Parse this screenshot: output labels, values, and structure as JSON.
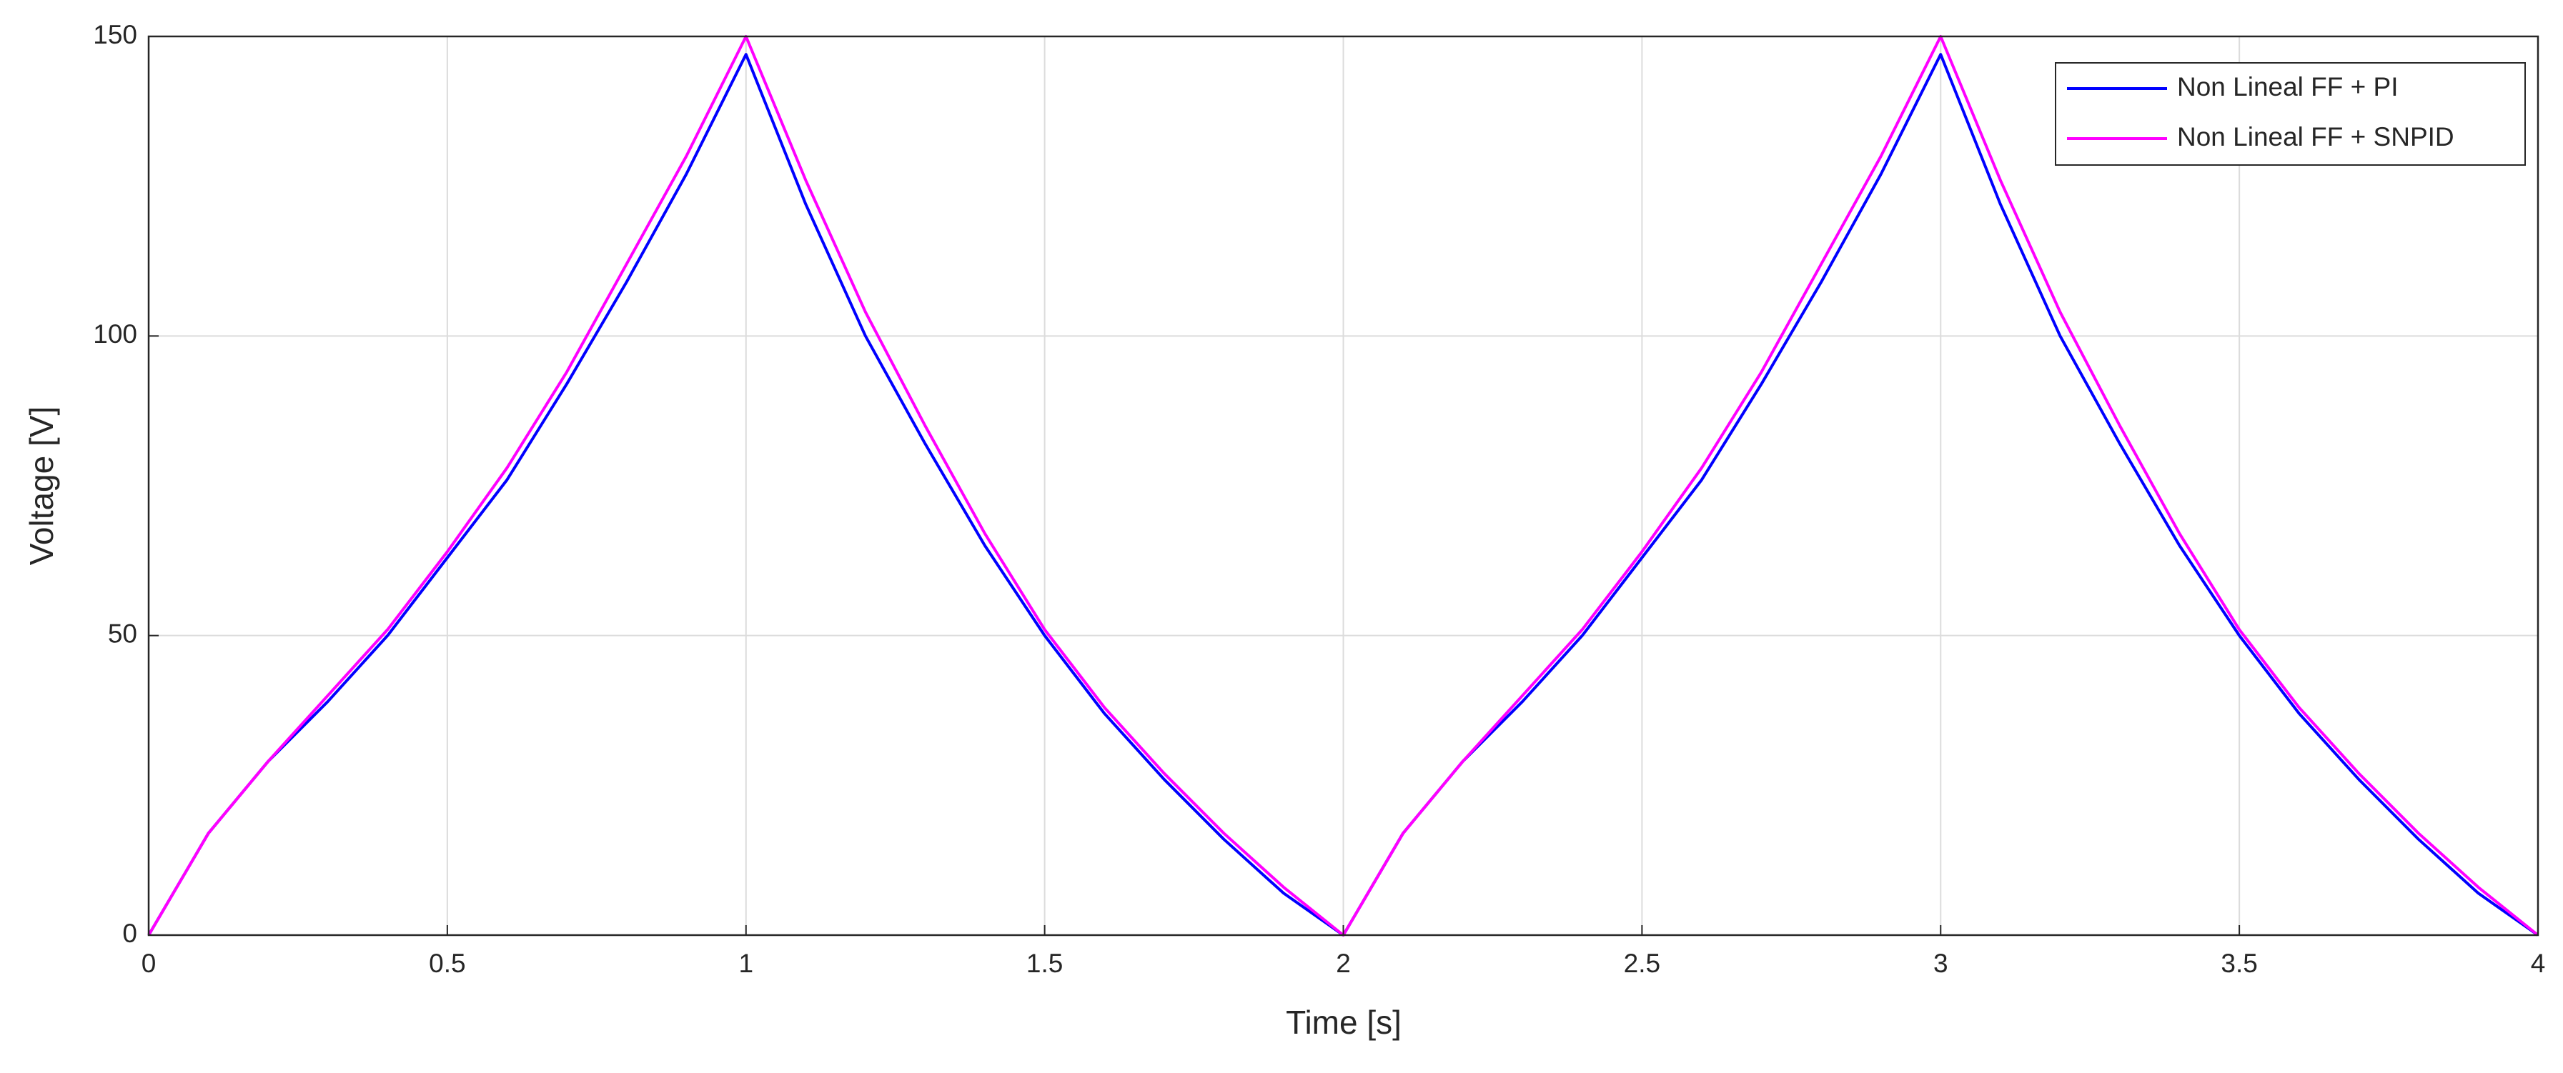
{
  "chart_data": {
    "type": "line",
    "xlabel": "Time [s]",
    "ylabel": "Voltage [V]",
    "x": [
      0,
      0.1,
      0.2,
      0.3,
      0.4,
      0.5,
      0.6,
      0.7,
      0.8,
      0.9,
      1.0,
      1.1,
      1.2,
      1.3,
      1.4,
      1.5,
      1.6,
      1.7,
      1.8,
      1.9,
      2.0,
      2.1,
      2.2,
      2.3,
      2.4,
      2.5,
      2.6,
      2.7,
      2.8,
      2.9,
      3.0,
      3.1,
      3.2,
      3.3,
      3.4,
      3.5,
      3.6,
      3.7,
      3.8,
      3.9,
      4.0
    ],
    "series": [
      {
        "name": "Non Lineal FF + PI",
        "color": "#0000ff",
        "values": [
          0,
          17,
          29,
          39,
          50,
          63,
          76,
          92,
          109,
          127,
          147,
          122,
          100,
          82,
          65,
          50,
          37,
          26,
          16,
          7,
          0,
          17,
          29,
          39,
          50,
          63,
          76,
          92,
          109,
          127,
          147,
          122,
          100,
          82,
          65,
          50,
          37,
          26,
          16,
          7,
          0
        ]
      },
      {
        "name": "Non Lineal FF + SNPID",
        "color": "#ff00ff",
        "values": [
          0,
          17,
          29,
          40,
          51,
          64,
          78,
          94,
          112,
          130,
          150,
          126,
          104,
          85,
          67,
          51,
          38,
          27,
          17,
          8,
          0,
          17,
          29,
          40,
          51,
          64,
          78,
          94,
          112,
          130,
          150,
          126,
          104,
          85,
          67,
          51,
          38,
          27,
          17,
          8,
          0
        ]
      }
    ],
    "xlim": [
      0,
      4
    ],
    "xticks": [
      0,
      0.5,
      1,
      1.5,
      2,
      2.5,
      3,
      3.5,
      4
    ],
    "ylim": [
      0,
      150
    ],
    "yticks": [
      0,
      50,
      100,
      150
    ],
    "grid": true,
    "legend": "upper right"
  }
}
